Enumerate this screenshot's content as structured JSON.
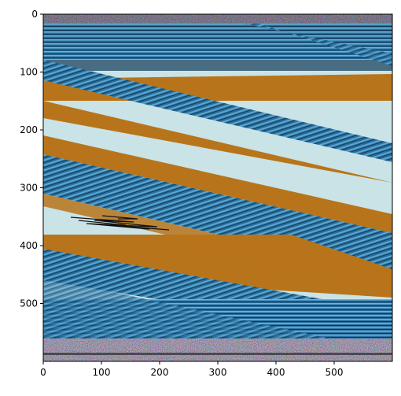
{
  "image": {
    "description_axes": "image rendered with pixel-index axes",
    "x_axis": {
      "ticks": [
        "0",
        "100",
        "200",
        "300",
        "400",
        "500"
      ],
      "range": [
        0,
        600
      ]
    },
    "y_axis": {
      "ticks": [
        "0",
        "100",
        "200",
        "300",
        "400",
        "500"
      ],
      "range": [
        0,
        600
      ]
    },
    "colors": {
      "sky": "#c9e3e6",
      "orange": "#b8741a",
      "blue": "#2a6f9e",
      "blue_dark": "#123d5e",
      "blue_light": "#5aa7cf",
      "noise_dark": "#3a3a40",
      "noise_light": "#8f8a8a"
    }
  }
}
